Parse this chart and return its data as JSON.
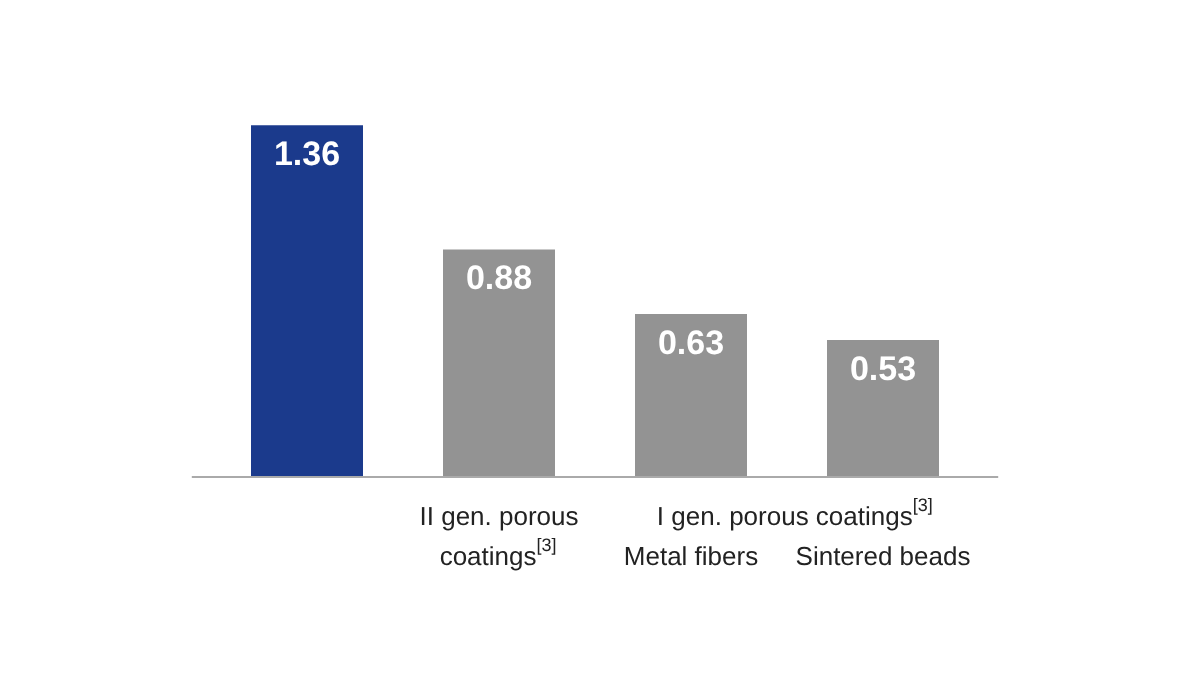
{
  "chart_data": {
    "type": "bar",
    "categories": [
      null,
      "II gen. porous coatings$^{[3]}$",
      "Metal fibers",
      "Sintered beads"
    ],
    "values": [
      1.36,
      0.88,
      0.63,
      0.53
    ],
    "colors": [
      "#1b3a8c",
      "#939393",
      "#939393",
      "#939393"
    ],
    "data_labels": true,
    "grid": false,
    "annotations": [
      "I gen. porous coatings$^{[3]}$"
    ]
  }
}
